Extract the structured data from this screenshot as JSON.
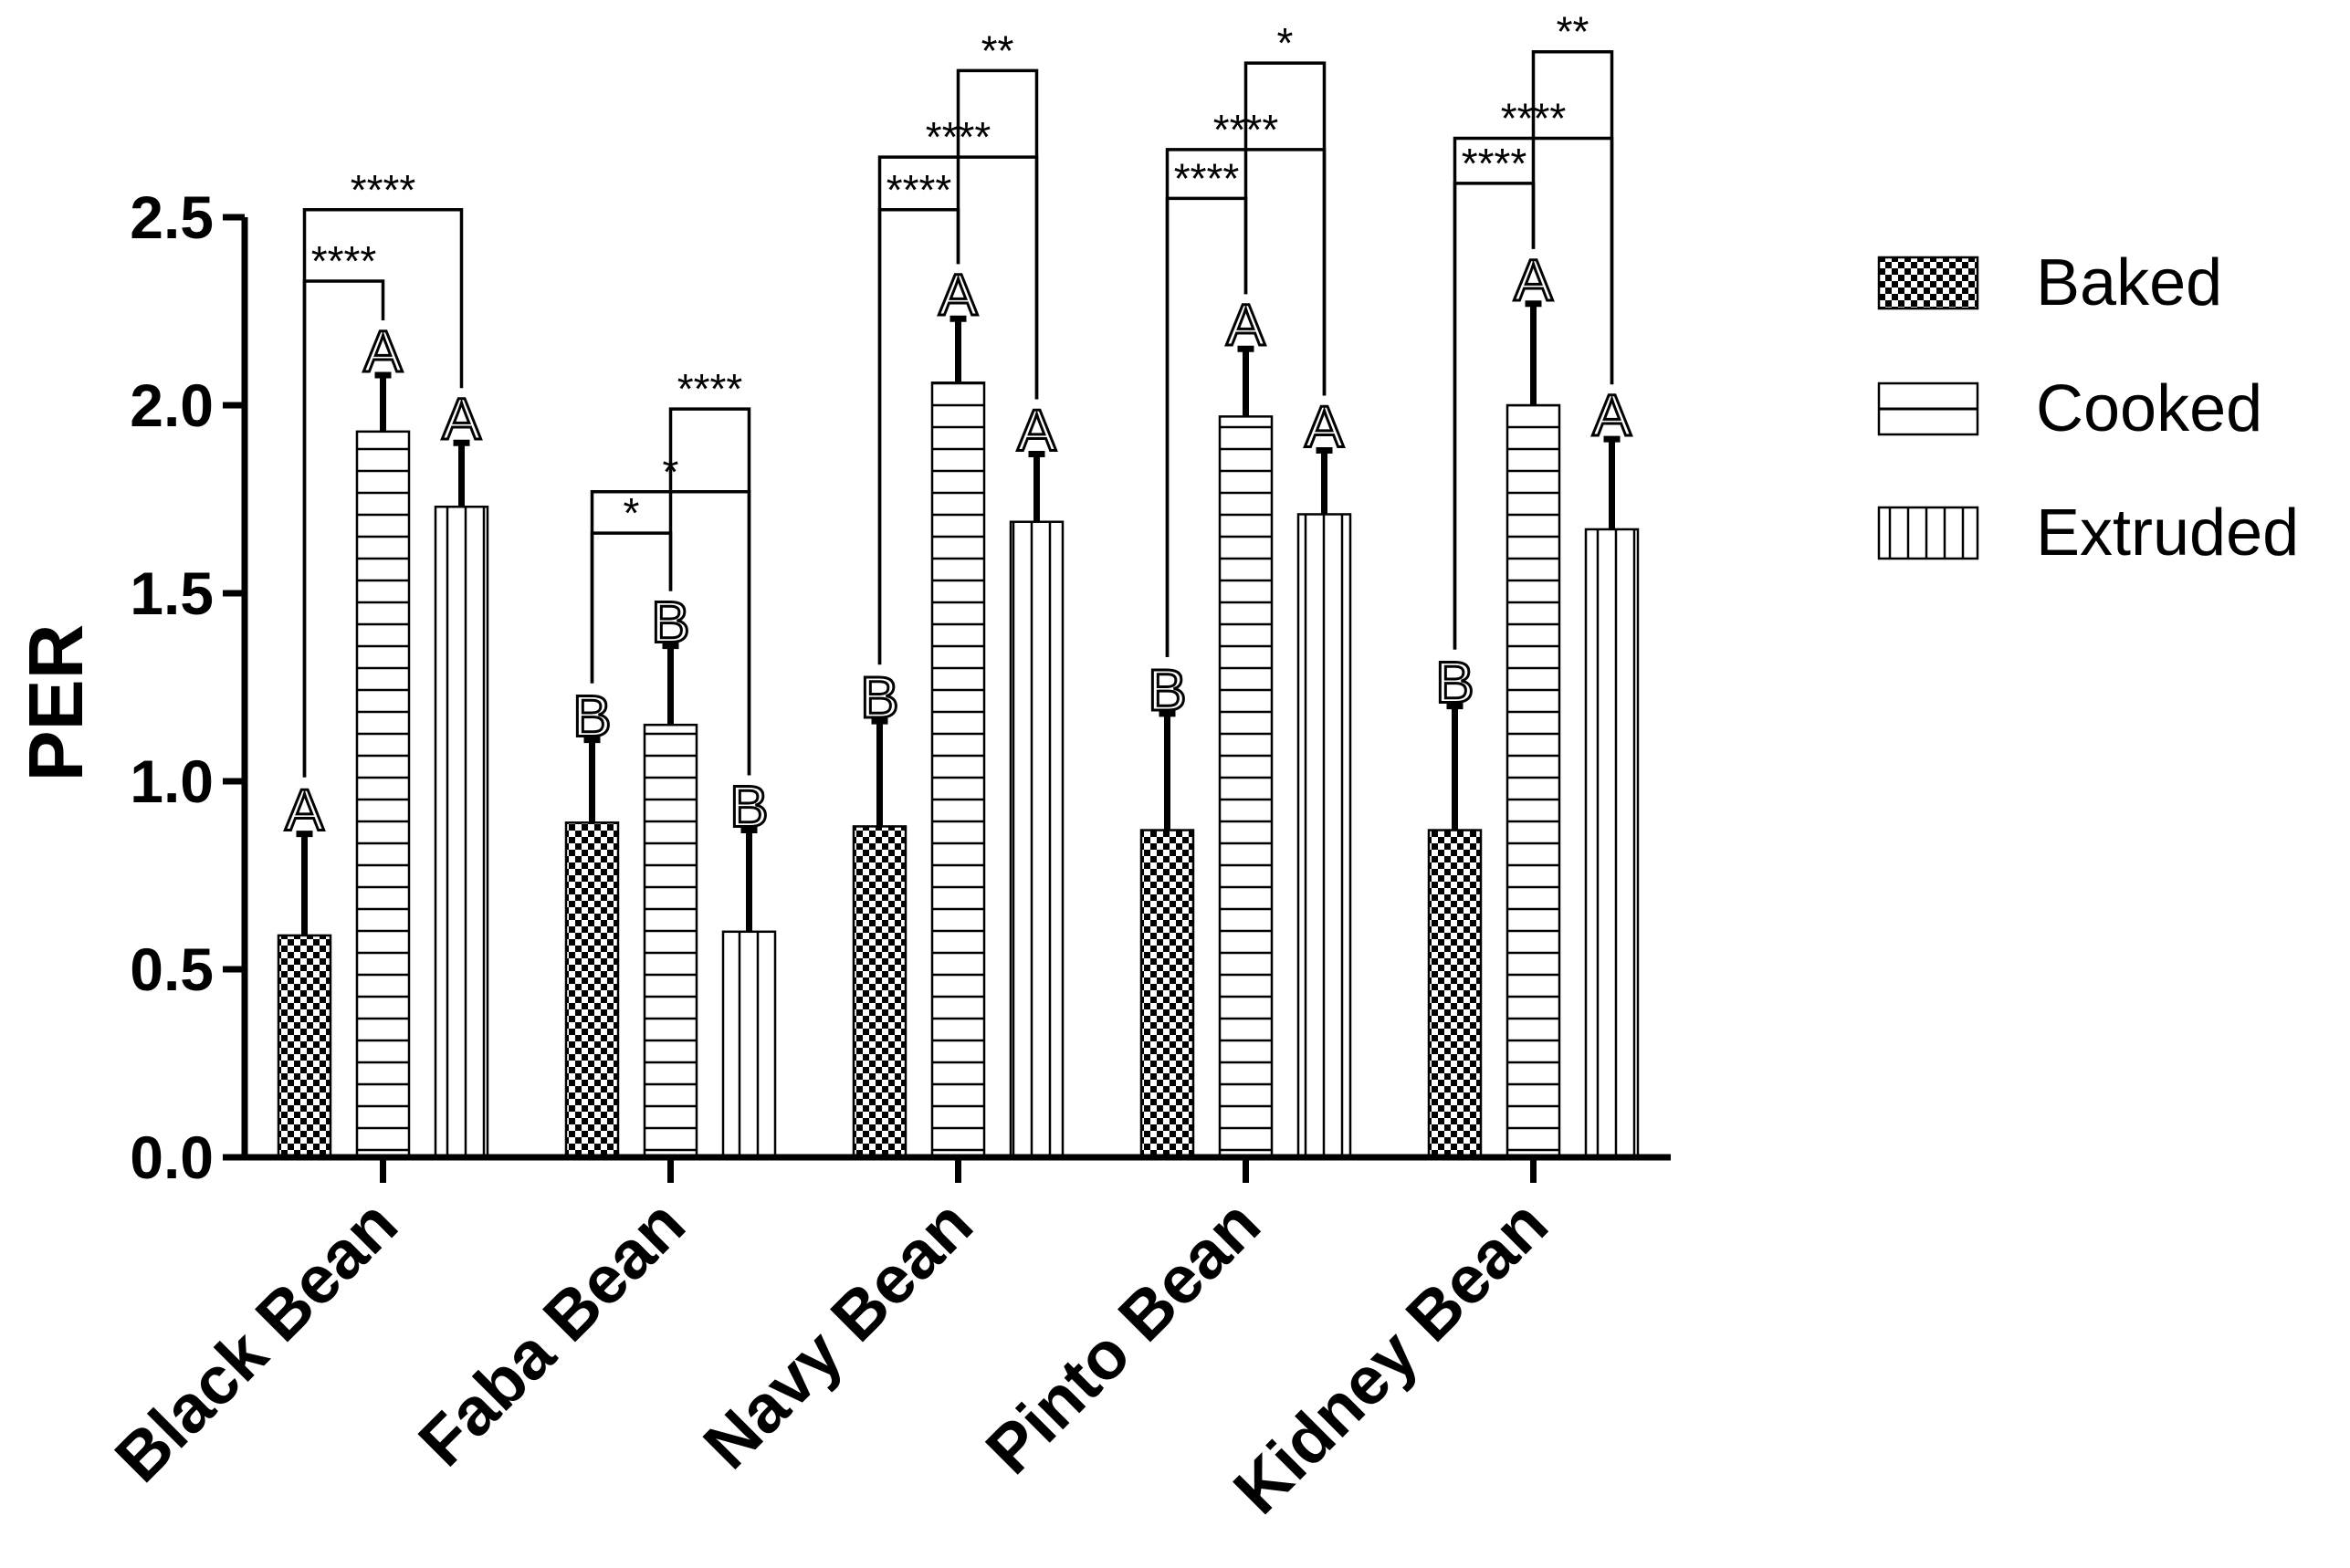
{
  "chart_data": {
    "type": "bar",
    "ylabel": "PER",
    "xlabel": "",
    "ylim": [
      0,
      2.5
    ],
    "yticks": [
      "0.0",
      "0.5",
      "1.0",
      "1.5",
      "2.0",
      "2.5"
    ],
    "categories": [
      "Black Bean",
      "Faba Bean",
      "Navy Bean",
      "Pinto Bean",
      "Kidney Bean"
    ],
    "series": [
      {
        "name": "Baked",
        "pattern": "checker",
        "values": [
          0.59,
          0.89,
          0.88,
          0.87,
          0.87
        ],
        "errors": [
          0.27,
          0.22,
          0.28,
          0.31,
          0.33
        ],
        "letters": [
          "A",
          "B",
          "B",
          "B",
          "B"
        ]
      },
      {
        "name": "Cooked",
        "pattern": "horizontal",
        "values": [
          1.93,
          1.15,
          2.06,
          1.97,
          2.0
        ],
        "errors": [
          0.15,
          0.21,
          0.17,
          0.18,
          0.27
        ],
        "letters": [
          "A",
          "B",
          "A",
          "A",
          "A"
        ]
      },
      {
        "name": "Extruded",
        "pattern": "vertical",
        "values": [
          1.73,
          0.6,
          1.69,
          1.71,
          1.67
        ],
        "errors": [
          0.17,
          0.27,
          0.18,
          0.17,
          0.24
        ],
        "letters": [
          "A",
          "B",
          "A",
          "A",
          "A"
        ]
      }
    ],
    "significance": [
      {
        "group": 0,
        "from": 0,
        "to": 1,
        "label": "****",
        "level": 2.33
      },
      {
        "group": 0,
        "from": 0,
        "to": 2,
        "label": "****",
        "level": 2.52
      },
      {
        "group": 1,
        "from": 0,
        "to": 1,
        "label": "*",
        "level": 1.66
      },
      {
        "group": 1,
        "from": 0,
        "to": 2,
        "label": "*",
        "level": 1.77
      },
      {
        "group": 1,
        "from": 1,
        "to": 2,
        "label": "****",
        "level": 1.99
      },
      {
        "group": 2,
        "from": 0,
        "to": 1,
        "label": "****",
        "level": 2.52
      },
      {
        "group": 2,
        "from": 0,
        "to": 2,
        "label": "****",
        "level": 2.66
      },
      {
        "group": 2,
        "from": 1,
        "to": 2,
        "label": "**",
        "level": 2.89
      },
      {
        "group": 3,
        "from": 0,
        "to": 1,
        "label": "****",
        "level": 2.55
      },
      {
        "group": 3,
        "from": 0,
        "to": 2,
        "label": "****",
        "level": 2.68
      },
      {
        "group": 3,
        "from": 1,
        "to": 2,
        "label": "*",
        "level": 2.91
      },
      {
        "group": 4,
        "from": 0,
        "to": 1,
        "label": "****",
        "level": 2.59
      },
      {
        "group": 4,
        "from": 0,
        "to": 2,
        "label": "****",
        "level": 2.71
      },
      {
        "group": 4,
        "from": 1,
        "to": 2,
        "label": "**",
        "level": 2.94
      }
    ],
    "legend": {
      "position": "right"
    },
    "grid": false
  }
}
